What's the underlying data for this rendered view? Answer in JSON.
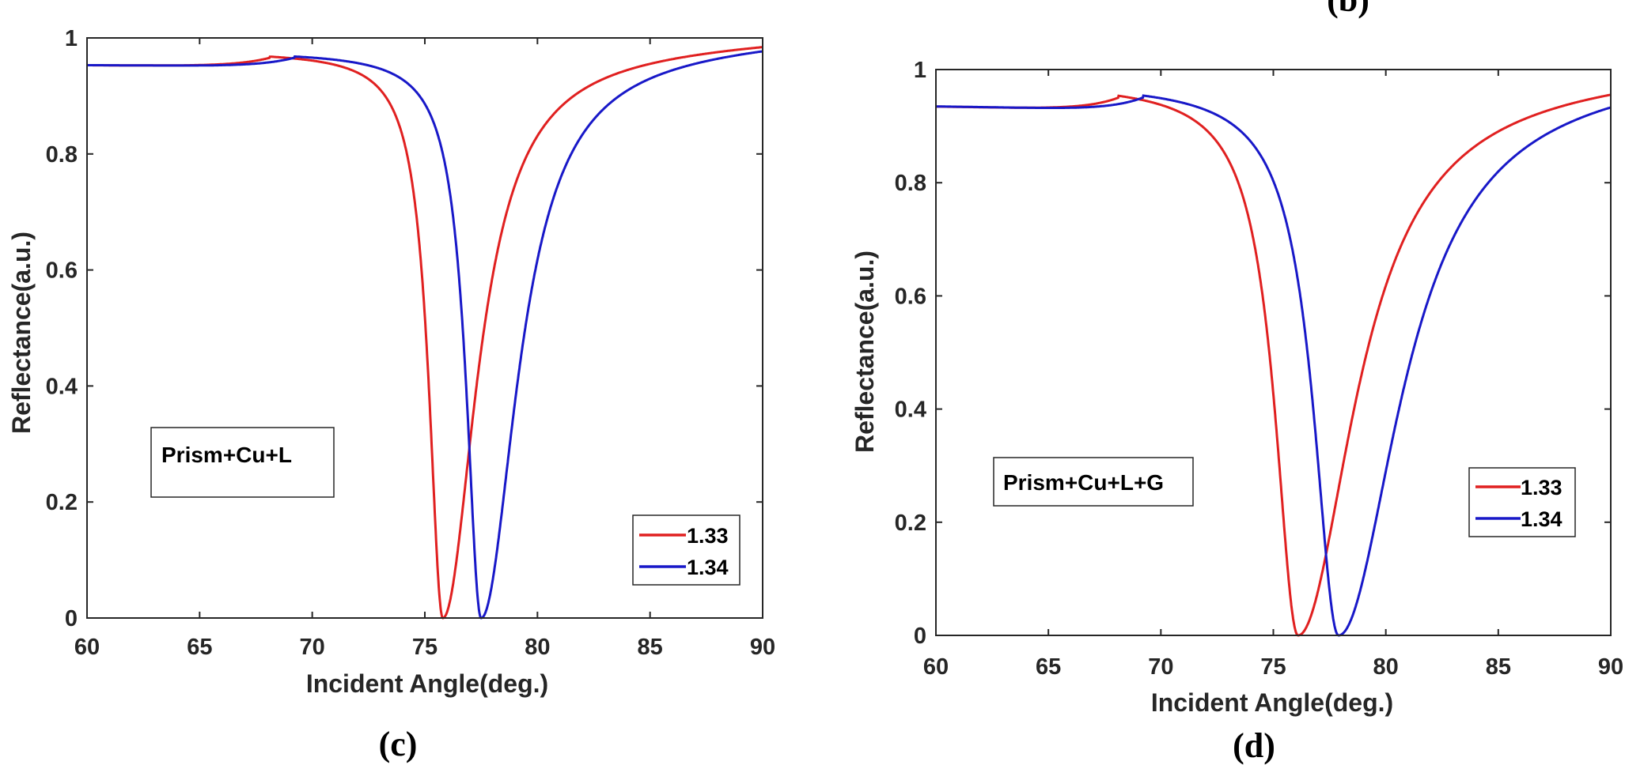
{
  "chart_data": [
    {
      "id": "c",
      "type": "line",
      "panel_label": "(c)",
      "xlabel": "Incident Angle(deg.)",
      "ylabel": "Reflectance(a.u.)",
      "xlim": [
        60,
        90
      ],
      "ylim": [
        0,
        1
      ],
      "xticks": [
        60,
        65,
        70,
        75,
        80,
        85,
        90
      ],
      "xtick_labels": [
        "60",
        "65",
        "70",
        "75",
        "80",
        "85",
        "90"
      ],
      "yticks": [
        0,
        0.2,
        0.4,
        0.6,
        0.8,
        1
      ],
      "ytick_labels": [
        "0",
        "0.2",
        "0.4",
        "0.6",
        "0.8",
        "1"
      ],
      "annotation": "Prism+Cu+L",
      "legend_position": "bottom-right",
      "series": [
        {
          "name": "1.33",
          "color": "#e02020",
          "plateau": 0.955,
          "step_angle": 68.1,
          "step_level": 0.977,
          "resonance_angle": 75.8,
          "min_reflectance": 0.0,
          "width": 0.75
        },
        {
          "name": "1.34",
          "color": "#1818c8",
          "plateau": 0.955,
          "step_angle": 69.2,
          "step_level": 0.977,
          "resonance_angle": 77.5,
          "min_reflectance": 0.0,
          "width": 0.8
        }
      ]
    },
    {
      "id": "d",
      "type": "line",
      "panel_label": "(d)",
      "xlabel": "Incident Angle(deg.)",
      "ylabel": "Reflectance(a.u.)",
      "xlim": [
        60,
        90
      ],
      "ylim": [
        0,
        1
      ],
      "xticks": [
        60,
        65,
        70,
        75,
        80,
        85,
        90
      ],
      "xtick_labels": [
        "60",
        "65",
        "70",
        "75",
        "80",
        "85",
        "90"
      ],
      "yticks": [
        0,
        0.2,
        0.4,
        0.6,
        0.8,
        1
      ],
      "ytick_labels": [
        "0",
        "0.2",
        "0.4",
        "0.6",
        "0.8",
        "1"
      ],
      "annotation": "Prism+Cu+L+G",
      "legend_position": "right",
      "series": [
        {
          "name": "1.33",
          "color": "#e02020",
          "plateau": 0.94,
          "step_angle": 68.1,
          "step_level": 0.977,
          "resonance_angle": 76.1,
          "min_reflectance": 0.0,
          "width": 1.25
        },
        {
          "name": "1.34",
          "color": "#1818c8",
          "plateau": 0.94,
          "step_angle": 69.2,
          "step_level": 0.977,
          "resonance_angle": 77.9,
          "min_reflectance": 0.0,
          "width": 1.35
        }
      ]
    }
  ],
  "cropped_top_label": "(b)"
}
